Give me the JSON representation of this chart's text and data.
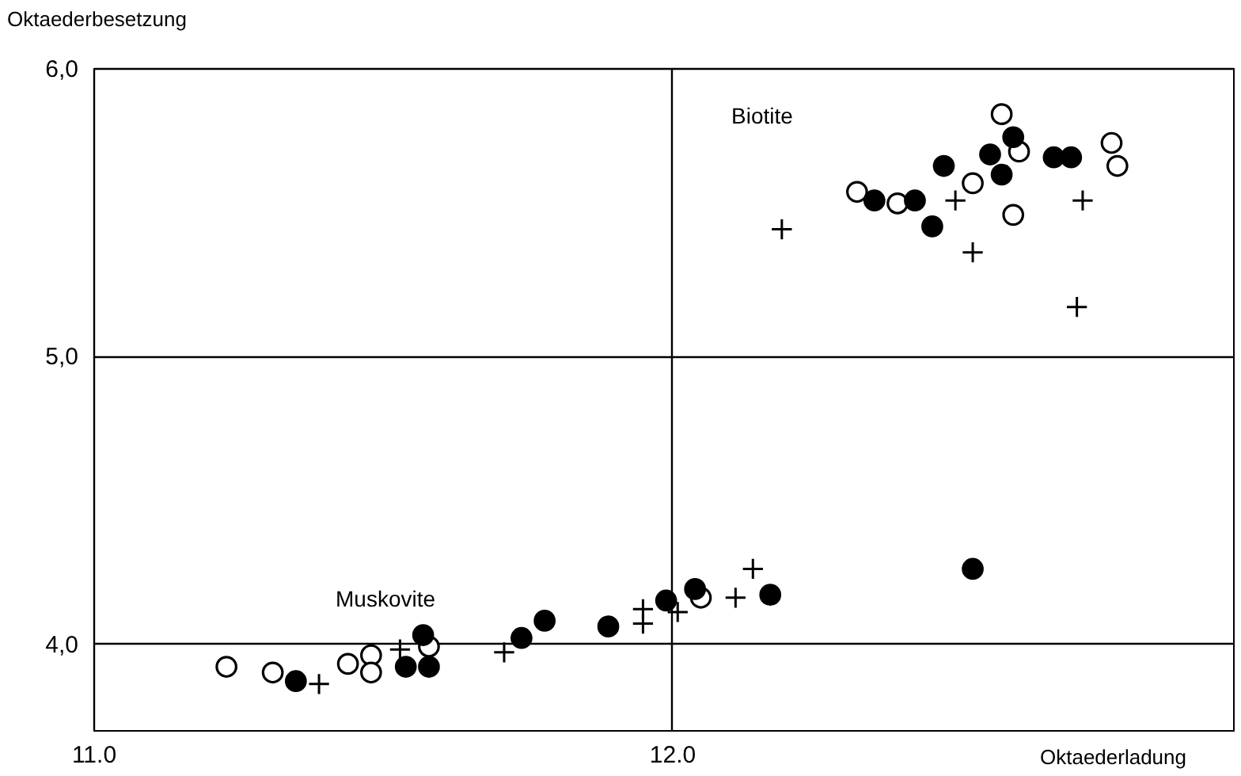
{
  "chart_data": {
    "type": "scatter",
    "xlabel": "Oktaederladung",
    "ylabel": "Oktaederbesetzung",
    "xlim": [
      11.0,
      12.97
    ],
    "ylim": [
      3.7,
      6.0
    ],
    "xticks": [
      {
        "value": 11,
        "label": "11.0"
      },
      {
        "value": 12,
        "label": "12.0"
      }
    ],
    "yticks": [
      {
        "value": 4,
        "label": "4,0"
      },
      {
        "value": 5,
        "label": "5,0"
      },
      {
        "value": 6,
        "label": "6,0"
      }
    ],
    "grid": true,
    "annotations": [
      "Biotite",
      "Muskovite"
    ],
    "series": [
      {
        "color": "#ffffff",
        "marker": "circle",
        "x": [
          12.57,
          12.6,
          12.32,
          12.39,
          12.52,
          12.59,
          12.76,
          12.77,
          11.23,
          11.31,
          11.44,
          11.48,
          11.48,
          11.58,
          12.05
        ],
        "values": [
          5.84,
          5.71,
          5.57,
          5.53,
          5.6,
          5.49,
          5.74,
          5.66,
          3.92,
          3.9,
          3.93,
          3.96,
          3.9,
          3.99,
          4.16
        ]
      },
      {
        "color": "#000000",
        "marker": "circle",
        "x": [
          12.59,
          12.55,
          12.57,
          12.47,
          12.35,
          12.42,
          12.45,
          12.66,
          12.69,
          11.35,
          11.57,
          11.54,
          11.58,
          11.74,
          11.78,
          11.89,
          11.99,
          12.04,
          12.17,
          12.52
        ],
        "values": [
          5.76,
          5.7,
          5.63,
          5.66,
          5.54,
          5.54,
          5.45,
          5.69,
          5.69,
          3.87,
          4.03,
          3.92,
          3.92,
          4.02,
          4.08,
          4.06,
          4.15,
          4.19,
          4.17,
          4.26
        ]
      },
      {
        "color": "#000000",
        "marker": "cross",
        "x": [
          12.19,
          12.49,
          12.52,
          12.71,
          12.7,
          11.39,
          11.53,
          11.71,
          11.95,
          11.95,
          12.01,
          12.11,
          12.14
        ],
        "values": [
          5.44,
          5.54,
          5.36,
          5.54,
          5.17,
          3.86,
          3.98,
          3.97,
          4.12,
          4.07,
          4.11,
          4.16,
          4.26
        ]
      }
    ]
  }
}
